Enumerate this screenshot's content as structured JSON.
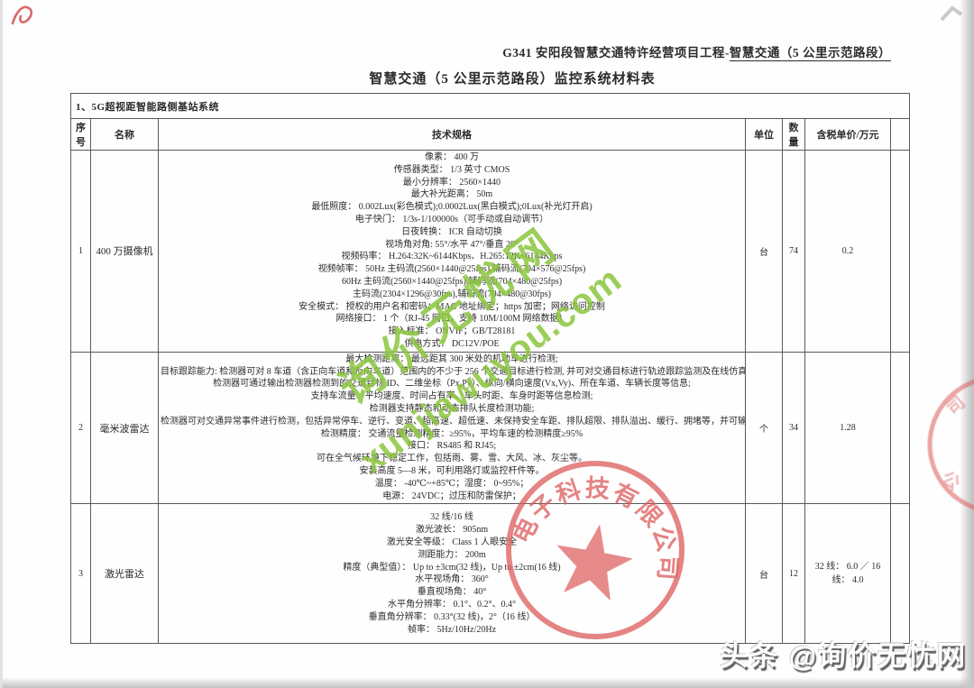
{
  "page": {
    "header_prefix": "G341 安阳段智慧交通特许经营项目工程-",
    "header_underlined": "智慧交通（5 公里示范路段）",
    "title": "智慧交通（5 公里示范路段）监控系统材料表",
    "section_title": "1、5G超视距智能路侧基站系统"
  },
  "table": {
    "columns": {
      "no": "序号",
      "name": "名称",
      "spec": "技术规格",
      "unit": "单位",
      "qty": "数量",
      "price": "含税单价/万元"
    },
    "rows": [
      {
        "no": "1",
        "name": "400 万摄像机",
        "unit": "台",
        "qty": "74",
        "price": "0.2",
        "specs": [
          "像素： 400 万",
          "传感器类型： 1/3 英寸 CMOS",
          "最小分辨率： 2560×1440",
          "最大补光距离： 50m",
          "最低照度： 0.002Lux(彩色模式);0.0002Lux(黑白模式);0Lux(补光灯开启)",
          "电子快门： 1/3s-1/100000s（可手动或自动调节）",
          "日夜转换： ICR 自动切换",
          "视场角对角: 55°/水平 47°/垂直 26°",
          "视频码率： H.264:32K~6144Kbps、H.265:12K~6144Kbps",
          "视频帧率： 50Hz 主码流(2560×1440@25fps),辅码流(704×576@25fps)",
          "60Hz 主码流(2560×1440@25fps),辅码流(704×480@25fps)",
          "主码流(2304×1296@30fps),辅码流(704×480@30fps)",
          "安全模式： 授权的用户名和密码；MAC 地址绑定；https 加密；网络访问控制",
          "网络接口： 1 个（RJ-45 网口，支持 10M/100M 网络数据）",
          "接入标准： ONVIF；GB/T28181",
          "供电方式： DC12V/POE"
        ]
      },
      {
        "no": "2",
        "name": "毫米波雷达",
        "unit": "个",
        "qty": "34",
        "price": "1.28",
        "specs": [
          "最大检测距离： 最远距其 300 米处的机动车进行检测;",
          "目标跟踪能力: 检测器可对 8 车道（含正向车道和反向车道）范围内的不少于 256 个交通目标进行检测, 并可对交通目标进行轨迹跟踪监测及在线仿真;",
          "检测器可通过输出检测器检测到的交通目标 ID、二维坐标（Px,Py）、纵向/横向速度(Vx,Vy)、所在车道、车辆长度等信息;",
          "支持车流量、平均速度、时间占有率、车头时距、车身时距等信息检测;",
          "检测器支持静态和动态排队长度检测功能;",
          "检测器可对交通异常事件进行检测，包括异常停车、逆行、变道、超高速、超低速、未保持安全车距、排队超限、排队溢出、缓行、拥堵等，并可输出报警信息;",
          "检测精度： 交通流量检测精度：≥95%，平均车速的检测精度≥95%",
          "接口： RS485 和 RJ45;",
          "可在全气候环境下稳定工作，包括雨、雾、雪、大风、冰、灰尘等。",
          "安装高度 5—8 米，可利用路灯或监控杆件等。",
          "温度： -40℃~+85℃；湿度： 0~95%；",
          "电源： 24VDC；过压和防雷保护；"
        ]
      },
      {
        "no": "3",
        "name": "激光雷达",
        "unit": "台",
        "qty": "12",
        "price": "32 线： 6.0 ／ 16 线： 4.0",
        "specs": [
          "32 线/16 线",
          "激光波长： 905nm",
          "激光安全等级： Class 1 人眼安全",
          "测距能力： 200m",
          "精度（典型值）： Up to ±3cm(32 线)，Up to ±2cm(16 线)",
          "水平视场角： 360°",
          "垂直视场角： 40°",
          "水平角分辨率： 0.1°、0.2°、0.4°",
          "垂直角分辨率： 0.33°(32 线)，2°（16 线）",
          "帧率： 5Hz/10Hz/20Hz"
        ]
      }
    ]
  },
  "watermark": {
    "line1": "询价无忧网",
    "line2": "xunjiawuyou.com",
    "color": "#8cc63f"
  },
  "stamp": {
    "text": "电子科技有限公司",
    "color": "#dd5a5a"
  },
  "footer_watermark": {
    "text": "头条 @询价无忧网"
  }
}
